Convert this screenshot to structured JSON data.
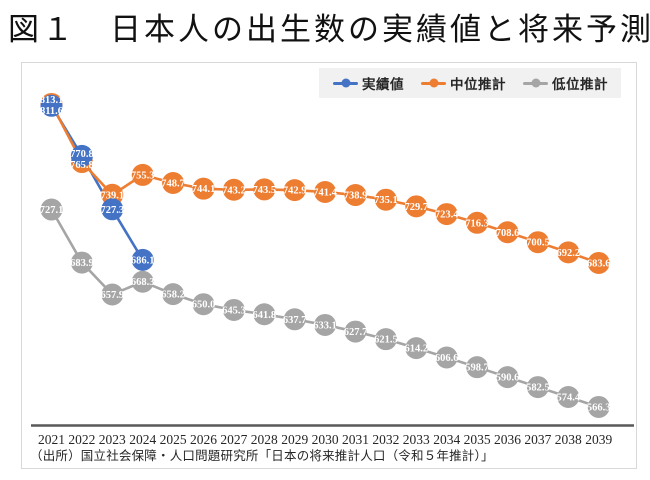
{
  "page": {
    "title": "図１　日本人の出生数の実績値と将来予測"
  },
  "chart_data": {
    "type": "line",
    "title": "日本人の出生数の実績値と将来予測",
    "x": [
      2021,
      2022,
      2023,
      2024,
      2025,
      2026,
      2027,
      2028,
      2029,
      2030,
      2031,
      2032,
      2033,
      2034,
      2035,
      2036,
      2037,
      2038,
      2039
    ],
    "series": [
      {
        "key": "actual",
        "name": "実績値",
        "color": "#4472C4",
        "values": [
          811.6,
          770.8,
          727.3,
          686.1,
          null,
          null,
          null,
          null,
          null,
          null,
          null,
          null,
          null,
          null,
          null,
          null,
          null,
          null,
          null
        ]
      },
      {
        "key": "medium",
        "name": "中位推計",
        "color": "#ED7D31",
        "values": [
          813.1,
          765.8,
          739.1,
          755.3,
          748.7,
          744.1,
          743.2,
          743.5,
          742.9,
          741.4,
          738.9,
          735.1,
          729.7,
          723.4,
          716.3,
          708.6,
          700.5,
          692.2,
          683.6
        ]
      },
      {
        "key": "low",
        "name": "低位推計",
        "color": "#A5A5A5",
        "values": [
          727.1,
          683.9,
          657.9,
          668.3,
          658.2,
          650.0,
          645.3,
          641.8,
          637.7,
          633.1,
          627.7,
          621.5,
          614.2,
          606.6,
          598.7,
          590.6,
          582.5,
          574.4,
          566.3
        ]
      }
    ],
    "legend_position": "top-right",
    "grid": false,
    "axis_color": "#595959",
    "data_label_color": "#ffffff",
    "source_note": "（出所）国立社会保障・人口問題研究所「日本の将来推計人口（令和５年推計）」"
  }
}
